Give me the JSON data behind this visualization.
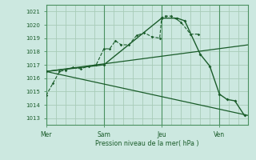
{
  "bg_color": "#cce8e0",
  "grid_color": "#a8ccb8",
  "line_color": "#1a5c2a",
  "vline_color": "#4a9060",
  "title": "Pression niveau de la mer( hPa )",
  "ylabel_values": [
    1013,
    1014,
    1015,
    1016,
    1017,
    1018,
    1019,
    1020,
    1021
  ],
  "ylim": [
    1012.5,
    1021.5
  ],
  "xtick_labels": [
    "Mer",
    "Sam",
    "Jeu",
    "Ven"
  ],
  "xtick_positions": [
    0,
    3,
    6,
    9
  ],
  "xlim": [
    0,
    10.5
  ],
  "series1_x": [
    0.0,
    0.35,
    0.7,
    1.0,
    1.4,
    1.8,
    2.2,
    2.6,
    3.0,
    3.3,
    3.6,
    3.9,
    4.3,
    4.7,
    5.1,
    5.5,
    5.9,
    6.0,
    6.2,
    6.5,
    7.0,
    7.5,
    7.9
  ],
  "series1_y": [
    1014.7,
    1015.6,
    1016.5,
    1016.6,
    1016.8,
    1016.7,
    1016.9,
    1017.0,
    1018.2,
    1018.2,
    1018.8,
    1018.5,
    1018.5,
    1019.2,
    1019.4,
    1019.1,
    1019.0,
    1020.55,
    1020.65,
    1020.65,
    1020.2,
    1019.3,
    1019.3
  ],
  "series2_x": [
    0.0,
    3.0,
    6.0,
    6.8,
    7.2,
    8.0,
    8.5,
    9.0,
    9.4,
    9.8,
    10.3
  ],
  "series2_y": [
    1016.5,
    1017.0,
    1020.5,
    1020.5,
    1020.3,
    1017.8,
    1016.9,
    1014.8,
    1014.4,
    1014.3,
    1013.2
  ],
  "line3_x": [
    0.0,
    10.5
  ],
  "line3_y": [
    1016.5,
    1018.5
  ],
  "line4_x": [
    0.0,
    10.5
  ],
  "line4_y": [
    1016.5,
    1013.2
  ],
  "vlines_x": [
    0,
    3,
    6,
    9
  ]
}
